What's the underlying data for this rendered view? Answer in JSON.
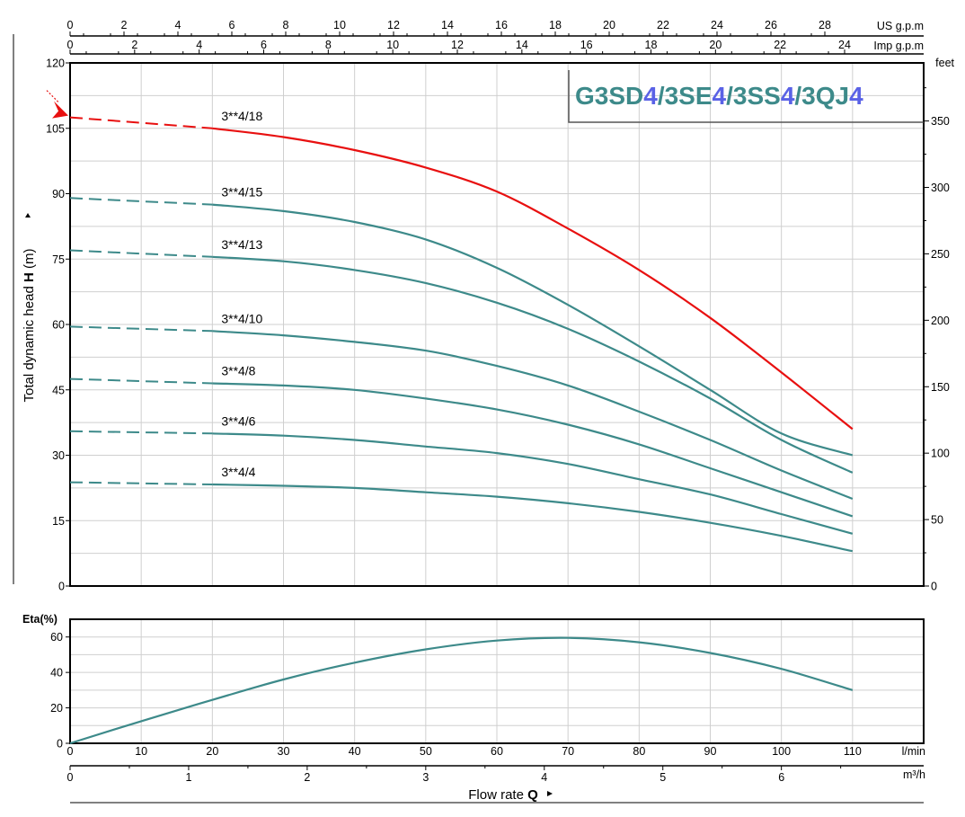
{
  "colors": {
    "curve": "#3d8a8a",
    "highlight": "#e81010",
    "title_main": "#3d8a8a",
    "title_accent": "#5a62e6",
    "grid": "#cfcfcf"
  },
  "title": {
    "parts": [
      {
        "text": "G3SD",
        "accent": false
      },
      {
        "text": "4",
        "accent": true
      },
      {
        "text": "/3SE",
        "accent": false
      },
      {
        "text": "4",
        "accent": true
      },
      {
        "text": "/3SS",
        "accent": false
      },
      {
        "text": "4",
        "accent": true
      },
      {
        "text": "/3QJ",
        "accent": false
      },
      {
        "text": "4",
        "accent": true
      }
    ]
  },
  "axes": {
    "us_gpm_label": "US g.p.m",
    "us_gpm_ticks": [
      "0",
      "2",
      "4",
      "6",
      "8",
      "10",
      "12",
      "14",
      "16",
      "18",
      "20",
      "22",
      "24",
      "26",
      "28"
    ],
    "imp_gpm_label": "Imp g.p.m",
    "imp_gpm_ticks": [
      "0",
      "2",
      "4",
      "6",
      "8",
      "10",
      "12",
      "14",
      "16",
      "18",
      "20",
      "22",
      "24"
    ],
    "feet_label": "feet",
    "feet_ticks": [
      "0",
      "50",
      "100",
      "150",
      "200",
      "250",
      "300",
      "350"
    ],
    "head_label_prefix": "Total dynamic head ",
    "head_label_symbol": "H",
    "head_label_unit": " (m)",
    "head_ticks": [
      "0",
      "15",
      "30",
      "45",
      "60",
      "75",
      "90",
      "105",
      "120"
    ],
    "eta_label": "Eta(%)",
    "eta_ticks": [
      "0",
      "20",
      "40",
      "60"
    ],
    "lmin_label": "l/min",
    "lmin_ticks": [
      "0",
      "10",
      "20",
      "30",
      "40",
      "50",
      "60",
      "70",
      "80",
      "90",
      "100",
      "110"
    ],
    "m3h_label": "m³/h",
    "m3h_ticks": [
      "0",
      "1",
      "2",
      "3",
      "4",
      "5",
      "6"
    ],
    "flow_label": "Flow rate",
    "flow_symbol": "Q"
  },
  "chart_data": [
    {
      "type": "line",
      "xlabel": "l/min",
      "ylabel": "Total dynamic head H (m)",
      "xlim": [
        0,
        120
      ],
      "ylim": [
        0,
        120
      ],
      "secondary_y": {
        "label": "feet",
        "ticks": [
          0,
          50,
          100,
          150,
          200,
          250,
          300,
          350
        ]
      },
      "secondary_x": [
        {
          "label": "US g.p.m",
          "max_tick": 28
        },
        {
          "label": "Imp g.p.m",
          "max_tick": 24
        }
      ],
      "grid": true,
      "dashed_until_x": 20,
      "series": [
        {
          "name": "3**4/18",
          "highlight": true,
          "x": [
            0,
            20,
            30,
            40,
            50,
            60,
            70,
            80,
            90,
            100,
            110
          ],
          "y": [
            107.5,
            105,
            103,
            100,
            96,
            90.5,
            82,
            72.5,
            61.5,
            49,
            36
          ]
        },
        {
          "name": "3**4/15",
          "highlight": false,
          "x": [
            0,
            20,
            30,
            40,
            50,
            60,
            70,
            80,
            90,
            100,
            110
          ],
          "y": [
            89,
            87.5,
            86,
            83.5,
            79.5,
            73,
            64.5,
            55,
            45,
            35,
            30
          ]
        },
        {
          "name": "3**4/13",
          "highlight": false,
          "x": [
            0,
            20,
            30,
            40,
            50,
            60,
            70,
            80,
            90,
            100,
            110
          ],
          "y": [
            77,
            75.5,
            74.5,
            72.5,
            69.5,
            65,
            59,
            51.5,
            43,
            33.5,
            26
          ]
        },
        {
          "name": "3**4/10",
          "highlight": false,
          "x": [
            0,
            20,
            30,
            40,
            50,
            60,
            70,
            80,
            90,
            100,
            110
          ],
          "y": [
            59.5,
            58.5,
            57.5,
            56,
            54,
            50.5,
            46,
            40,
            33.5,
            26.5,
            20
          ]
        },
        {
          "name": "3**4/8",
          "highlight": false,
          "x": [
            0,
            20,
            30,
            40,
            50,
            60,
            70,
            80,
            90,
            100,
            110
          ],
          "y": [
            47.5,
            46.5,
            46,
            45,
            43,
            40.5,
            37,
            32.5,
            27,
            21.5,
            16
          ]
        },
        {
          "name": "3**4/6",
          "highlight": false,
          "x": [
            0,
            20,
            30,
            40,
            50,
            60,
            70,
            80,
            90,
            100,
            110
          ],
          "y": [
            35.5,
            35,
            34.5,
            33.5,
            32,
            30.5,
            28,
            24.5,
            21,
            16.5,
            12
          ]
        },
        {
          "name": "3**4/4",
          "highlight": false,
          "x": [
            0,
            20,
            30,
            40,
            50,
            60,
            70,
            80,
            90,
            100,
            110
          ],
          "y": [
            23.8,
            23.3,
            23,
            22.5,
            21.5,
            20.5,
            19,
            17,
            14.5,
            11.5,
            8
          ]
        }
      ]
    },
    {
      "type": "line",
      "xlabel": "Flow rate Q",
      "ylabel": "Eta(%)",
      "xlim": [
        0,
        120
      ],
      "ylim": [
        0,
        70
      ],
      "secondary_x": {
        "label": "m³/h",
        "ticks": [
          0,
          1,
          2,
          3,
          4,
          5,
          6
        ]
      },
      "grid": true,
      "series": [
        {
          "name": "",
          "x": [
            0,
            10,
            20,
            30,
            40,
            50,
            60,
            70,
            80,
            90,
            100,
            110
          ],
          "y": [
            0,
            12.5,
            24.5,
            36,
            45.5,
            53,
            58,
            59.5,
            57,
            51,
            42,
            30
          ]
        }
      ]
    }
  ]
}
